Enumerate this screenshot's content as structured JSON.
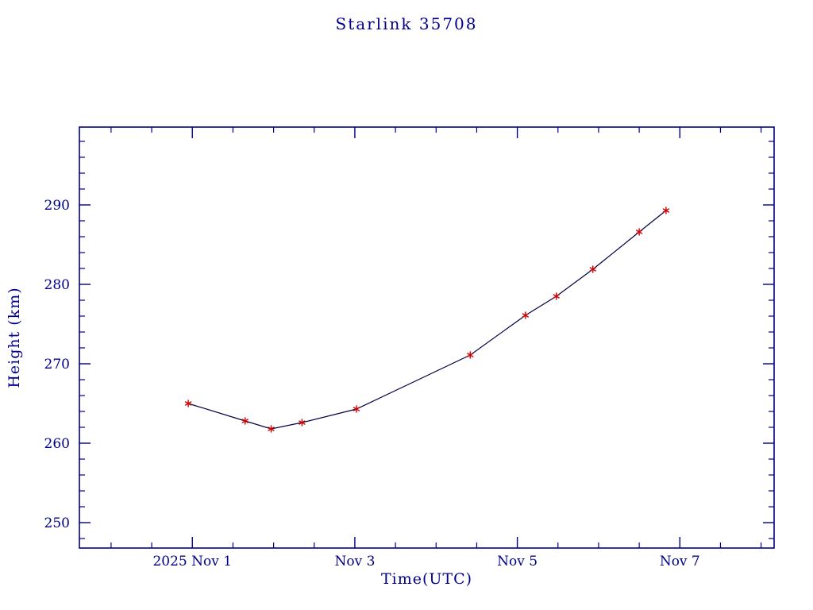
{
  "chart_data": {
    "type": "line",
    "title": "Starlink 35708",
    "xlabel": "Time(UTC)",
    "ylabel": "Height (km)",
    "axis_color": "#00008b",
    "line_color": "#000045",
    "marker_color": "#cc0000",
    "marker_style": "asterisk",
    "grid": false,
    "legend": "none",
    "xlim_days_of_nov_2025": [
      -0.39,
      8.16
    ],
    "ylim": [
      246.8,
      299.8
    ],
    "x_major_ticks": [
      {
        "value": 1,
        "label": "2025 Nov 1"
      },
      {
        "value": 3,
        "label": "Nov 3"
      },
      {
        "value": 5,
        "label": "Nov 5"
      },
      {
        "value": 7,
        "label": "Nov 7"
      }
    ],
    "y_major_ticks": [
      {
        "value": 250,
        "label": "250"
      },
      {
        "value": 260,
        "label": "260"
      },
      {
        "value": 270,
        "label": "270"
      },
      {
        "value": 280,
        "label": "280"
      },
      {
        "value": 290,
        "label": "290"
      }
    ],
    "x_minor_step": 0.5,
    "y_minor_step": 2,
    "series": [
      {
        "name": "height",
        "x_days_of_nov_2025": [
          0.95,
          1.65,
          1.97,
          2.35,
          3.02,
          4.42,
          5.1,
          5.48,
          5.93,
          6.5,
          6.83
        ],
        "y_height_km": [
          265.0,
          262.8,
          261.8,
          262.6,
          264.3,
          271.1,
          276.1,
          278.5,
          281.9,
          286.6,
          289.3
        ]
      }
    ]
  }
}
